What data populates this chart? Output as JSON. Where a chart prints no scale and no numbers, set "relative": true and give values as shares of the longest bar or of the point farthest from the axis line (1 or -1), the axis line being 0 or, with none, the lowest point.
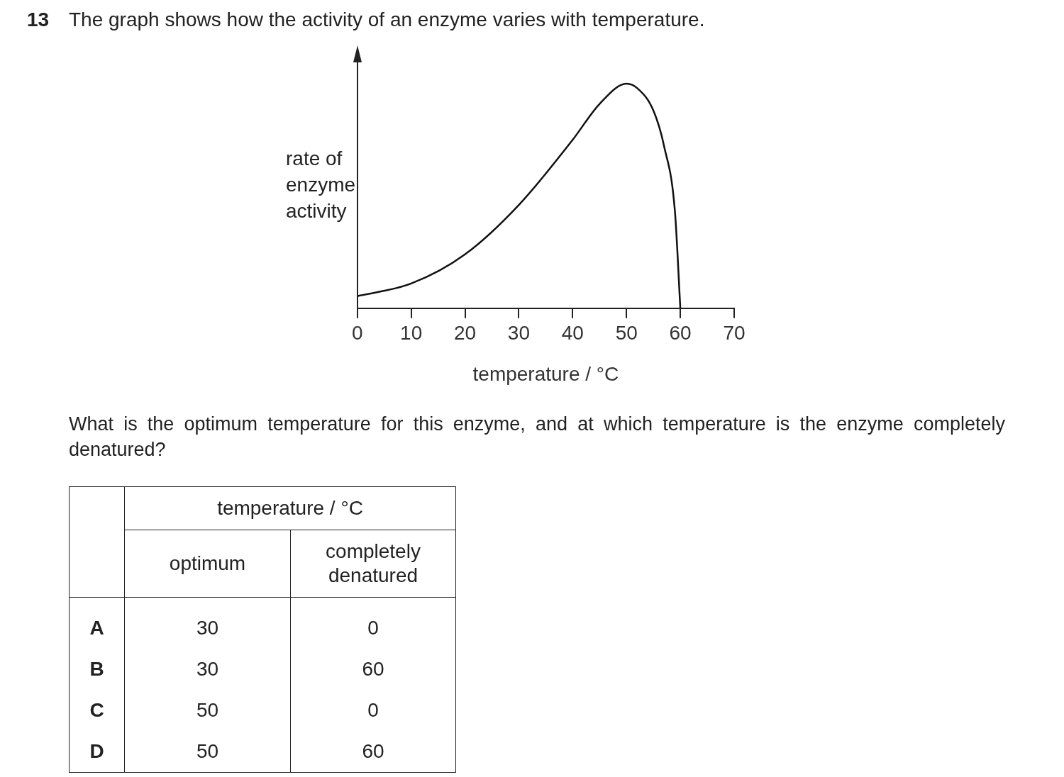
{
  "chart_data": {
    "type": "line",
    "title": "The graph shows how the activity of an enzyme varies with temperature.",
    "xlabel": "temperature / °C",
    "ylabel": "rate of enzyme activity",
    "relative": true,
    "x": [
      0,
      10,
      20,
      30,
      40,
      45,
      50,
      52,
      55,
      57,
      59,
      60
    ],
    "series": [
      {
        "color": "#111111",
        "values": [
          0.054,
          0.11,
          0.24,
          0.46,
          0.75,
          0.91,
          1,
          0.98,
          0.88,
          0.72,
          0.43,
          0
        ]
      }
    ],
    "xlim": [
      0,
      70
    ],
    "xticks": [
      0,
      10,
      20,
      30,
      40,
      50,
      60,
      70
    ],
    "grid": false,
    "legend": false,
    "marker": "none",
    "line_style": "solid",
    "annotations": [
      "13",
      "What is the optimum temperature for this enzyme, and at which temperature is the enzyme completely denatured?",
      "temperature / °C",
      "optimum",
      "completely denatured",
      "A",
      "30",
      "0",
      "B",
      "30",
      "60",
      "C",
      "50",
      "0",
      "D",
      "50",
      "60"
    ]
  }
}
